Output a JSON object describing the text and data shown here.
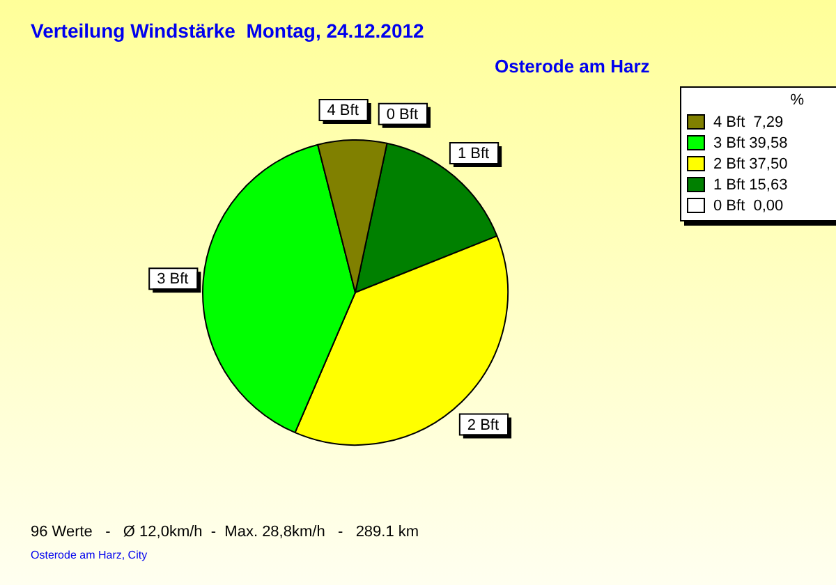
{
  "chart_data": {
    "type": "pie",
    "title": "Verteilung Windstärke  Montag, 24.12.2012",
    "subtitle": "Osterode am Harz",
    "categories": [
      "0 Bft",
      "1 Bft",
      "2 Bft",
      "3 Bft",
      "4 Bft"
    ],
    "values": [
      0.0,
      15.63,
      37.5,
      39.58,
      7.29
    ],
    "value_labels": [
      "0,00",
      "15,63",
      "37,50",
      "39,58",
      "7,29"
    ],
    "colors": [
      "#ffffff",
      "#008000",
      "#ffff00",
      "#00ff00",
      "#808000"
    ],
    "legend": "top right",
    "legend_title": "%",
    "annotations": [
      "96 Werte   -   Ø 12,0km/h  -  Max. 28,8km/h   -   289.1 km",
      "Osterode am Harz, City"
    ]
  }
}
